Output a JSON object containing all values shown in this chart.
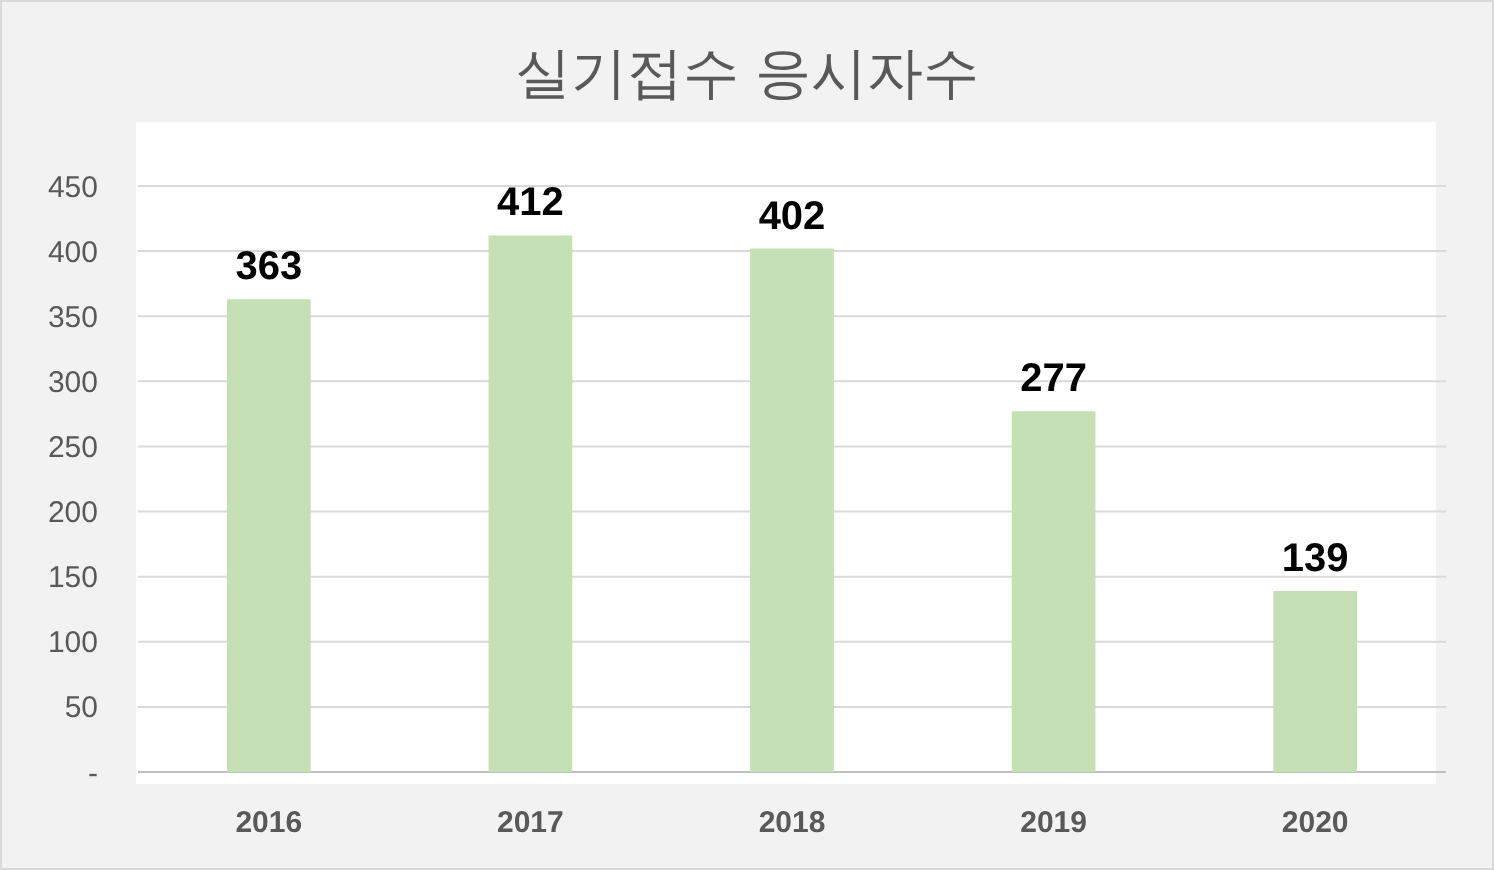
{
  "chart_data": {
    "type": "bar",
    "title": "실기접수 응시자수",
    "categories": [
      "2016",
      "2017",
      "2018",
      "2019",
      "2020"
    ],
    "values": [
      363,
      412,
      402,
      277,
      139
    ],
    "color": "#c5e0b4",
    "ylim": [
      0,
      450
    ],
    "yticks": [
      {
        "value": 0,
        "label": "-"
      },
      50,
      100,
      150,
      200,
      250,
      300,
      350,
      400,
      450
    ],
    "grid": "y",
    "data_labels": true
  }
}
